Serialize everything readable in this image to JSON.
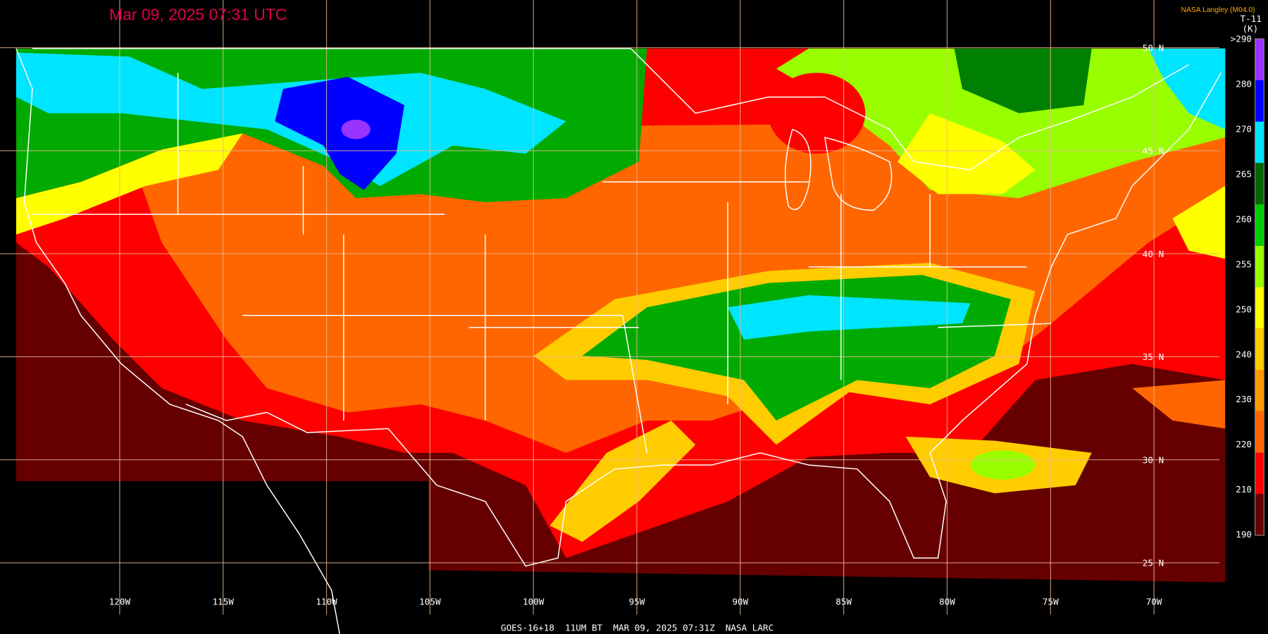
{
  "header": {
    "title": "Mar 09, 2025 07:31 UTC",
    "credit": "NASA Langley (M04.0)",
    "channel": "T-11",
    "unit": "(K)"
  },
  "footer": "GOES-16+18  11UM BT  MAR 09, 2025 07:31Z  NASA LARC",
  "longitude_labels": [
    "120W",
    "115W",
    "110W",
    "105W",
    "100W",
    "95W",
    "90W",
    "85W",
    "80W",
    "75W",
    "70W"
  ],
  "latitude_labels": [
    "50 N",
    "45 N",
    "40 N",
    "35 N",
    "30 N",
    "25 N"
  ],
  "colorbar": {
    "labels": [
      ">290",
      "280",
      "270",
      "265",
      "260",
      "255",
      "250",
      "240",
      "230",
      "220",
      "210",
      "190"
    ],
    "colors": [
      "#660000",
      "#ff0000",
      "#ff6600",
      "#ff9900",
      "#ffcc00",
      "#ffff00",
      "#99ff00",
      "#00cc00",
      "#006600",
      "#00e5ff",
      "#0000ff",
      "#9933ff"
    ]
  }
}
